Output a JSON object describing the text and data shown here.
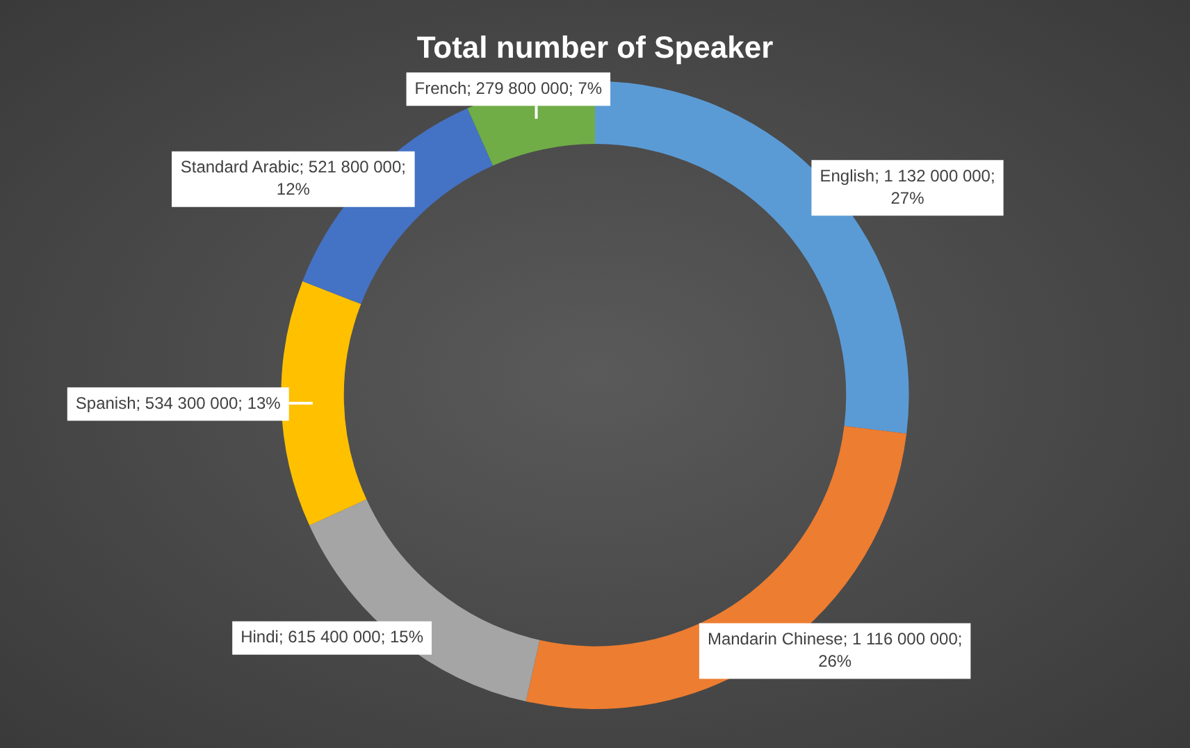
{
  "chart_data": {
    "type": "donut",
    "title": "Total number of Speaker",
    "categories": [
      "English",
      "Mandarin Chinese",
      "Hindi",
      "Spanish",
      "Standard Arabic",
      "French"
    ],
    "values": [
      1132000000,
      1116000000,
      615400000,
      534300000,
      521800000,
      279800000
    ],
    "colors": [
      "#5b9bd5",
      "#ed7d31",
      "#a5a5a5",
      "#ffc000",
      "#4472c4",
      "#70ad47"
    ],
    "value_labels": [
      "1 132 000 000; 27%",
      "1 116 000 000; 26%",
      "615 400 000; 15%",
      "534 300 000; 13%",
      "521 800 000; 12%",
      "279 800 000; 7%"
    ]
  }
}
